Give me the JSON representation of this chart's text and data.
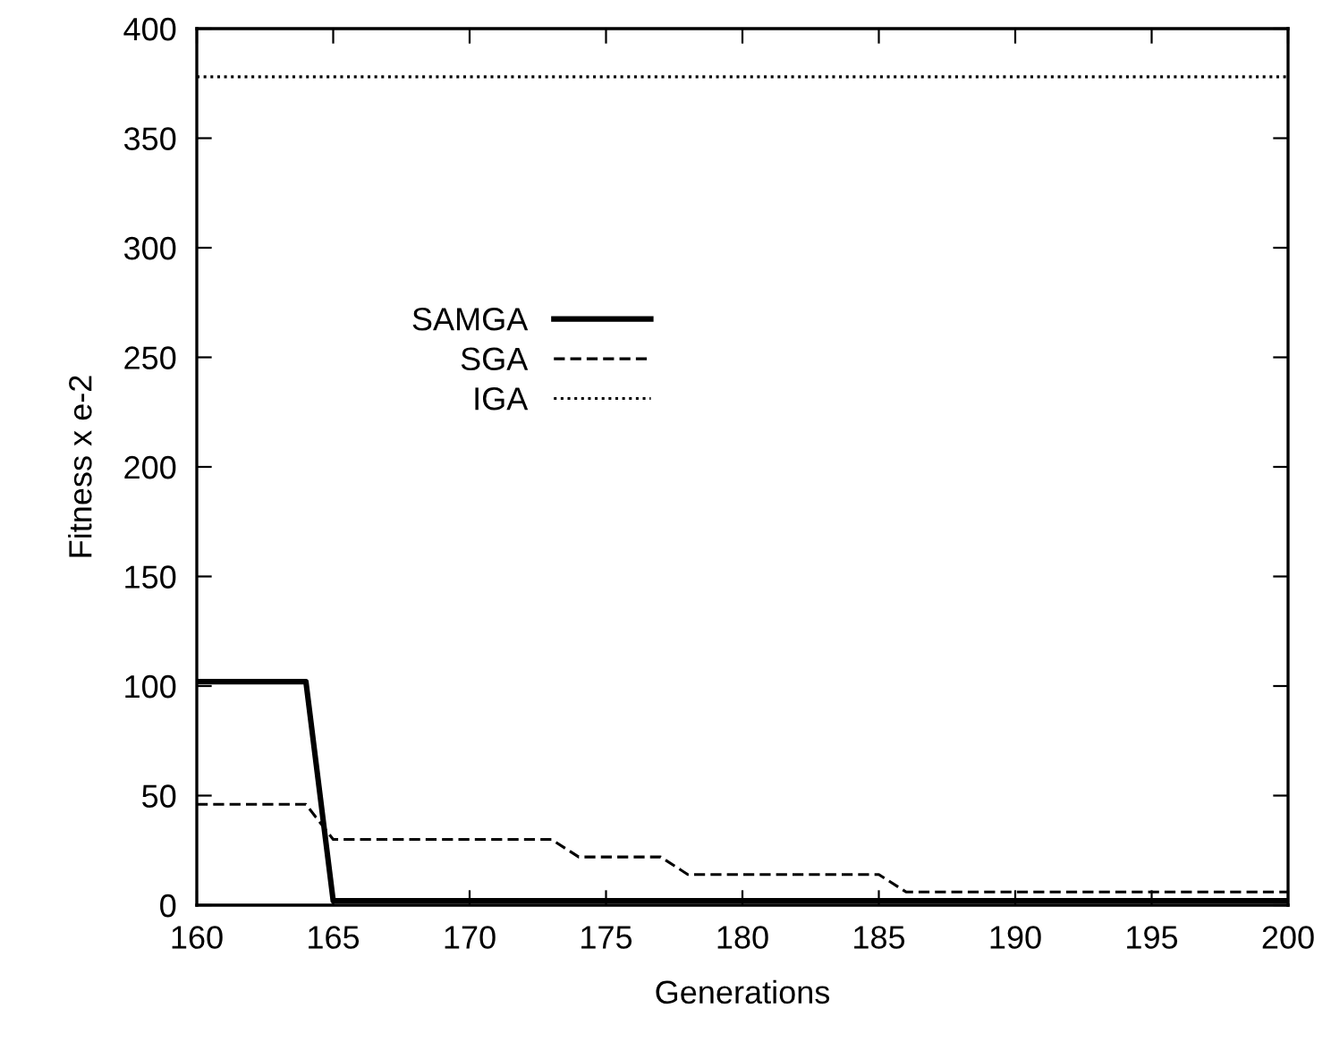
{
  "chart_data": {
    "type": "line",
    "xlabel": "Generations",
    "ylabel": "Fitness x e-2",
    "xlim": [
      160,
      200
    ],
    "ylim": [
      0,
      400
    ],
    "xticks": [
      160,
      165,
      170,
      175,
      180,
      185,
      190,
      195,
      200
    ],
    "yticks": [
      0,
      50,
      100,
      150,
      200,
      250,
      300,
      350,
      400
    ],
    "grid": false,
    "legend": "center left",
    "marker": "none",
    "series": [
      {
        "name": "SAMGA",
        "color": "#000000",
        "line_style": "solid",
        "x": [
          160,
          164,
          165,
          200
        ],
        "values": [
          102,
          102,
          2,
          2
        ]
      },
      {
        "name": "SGA",
        "color": "#000000",
        "line_style": "dashed",
        "x": [
          160,
          164,
          165,
          173,
          174,
          177,
          178,
          185,
          186,
          200
        ],
        "values": [
          46,
          46,
          30,
          30,
          22,
          22,
          14,
          14,
          6,
          6
        ]
      },
      {
        "name": "IGA",
        "color": "#000000",
        "line_style": "dotted",
        "x": [
          160,
          200
        ],
        "values": [
          378,
          378
        ]
      }
    ]
  }
}
